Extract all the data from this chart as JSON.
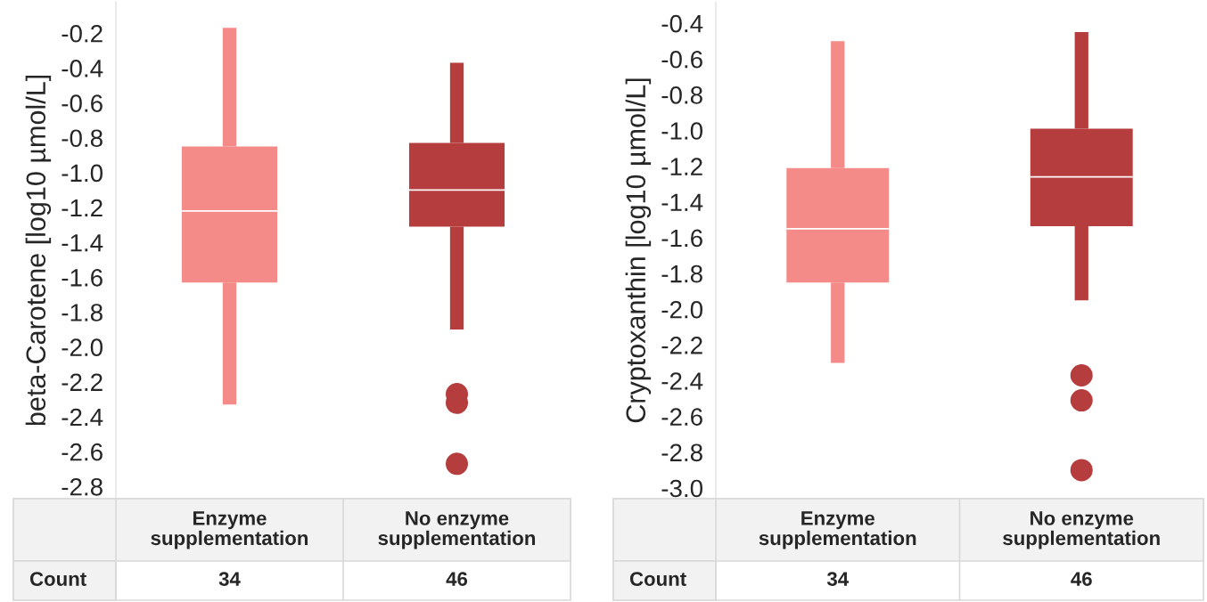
{
  "chart_data": [
    {
      "type": "box",
      "ylabel": "beta-Carotene [log10 µmol/L]",
      "categories": [
        "Enzyme\nsupplementation",
        "No enzyme\nsupplementation"
      ],
      "colors": [
        "#f48b88",
        "#b53d3d"
      ],
      "boxes": [
        {
          "low": -2.33,
          "q1": -1.63,
          "median": -1.22,
          "q3": -0.85,
          "high": -0.17
        },
        {
          "low": -1.9,
          "q1": -1.31,
          "median": -1.1,
          "q3": -0.83,
          "high": -0.37,
          "outliers": [
            -2.27,
            -2.32,
            -2.67
          ]
        }
      ],
      "ylim": [
        -2.87,
        -0.02
      ],
      "yticks": [
        -0.2,
        -0.4,
        -0.6,
        -0.8,
        {
          "value": -1,
          "label": "-1.0"
        },
        -1.2,
        -1.4,
        -1.6,
        -1.8,
        {
          "value": -2,
          "label": "-2.0"
        },
        -2.2,
        -2.4,
        -2.6,
        -2.8
      ],
      "annotations": [
        "Count",
        "34",
        "46"
      ]
    },
    {
      "type": "box",
      "ylabel": "Cryptoxanthin [log10 µmol/L]",
      "categories": [
        "Enzyme\nsupplementation",
        "No enzyme\nsupplementation"
      ],
      "colors": [
        "#f48b88",
        "#b53d3d"
      ],
      "boxes": [
        {
          "low": -2.3,
          "q1": -1.85,
          "median": -1.55,
          "q3": -1.21,
          "high": -0.5
        },
        {
          "low": -1.95,
          "q1": -1.535,
          "median": -1.26,
          "q3": -0.99,
          "high": -0.45,
          "outliers": [
            -2.37,
            -2.51,
            -2.9
          ]
        }
      ],
      "ylim": [
        -3.06,
        -0.28
      ],
      "yticks": [
        -0.4,
        -0.6,
        -0.8,
        {
          "value": -1,
          "label": "-1.0"
        },
        -1.2,
        -1.4,
        -1.6,
        -1.8,
        {
          "value": -2,
          "label": "-2.0"
        },
        -2.2,
        -2.4,
        -2.6,
        -2.8,
        {
          "value": -3,
          "label": "-3.0"
        }
      ],
      "annotations": [
        "Count",
        "34",
        "46"
      ]
    }
  ]
}
